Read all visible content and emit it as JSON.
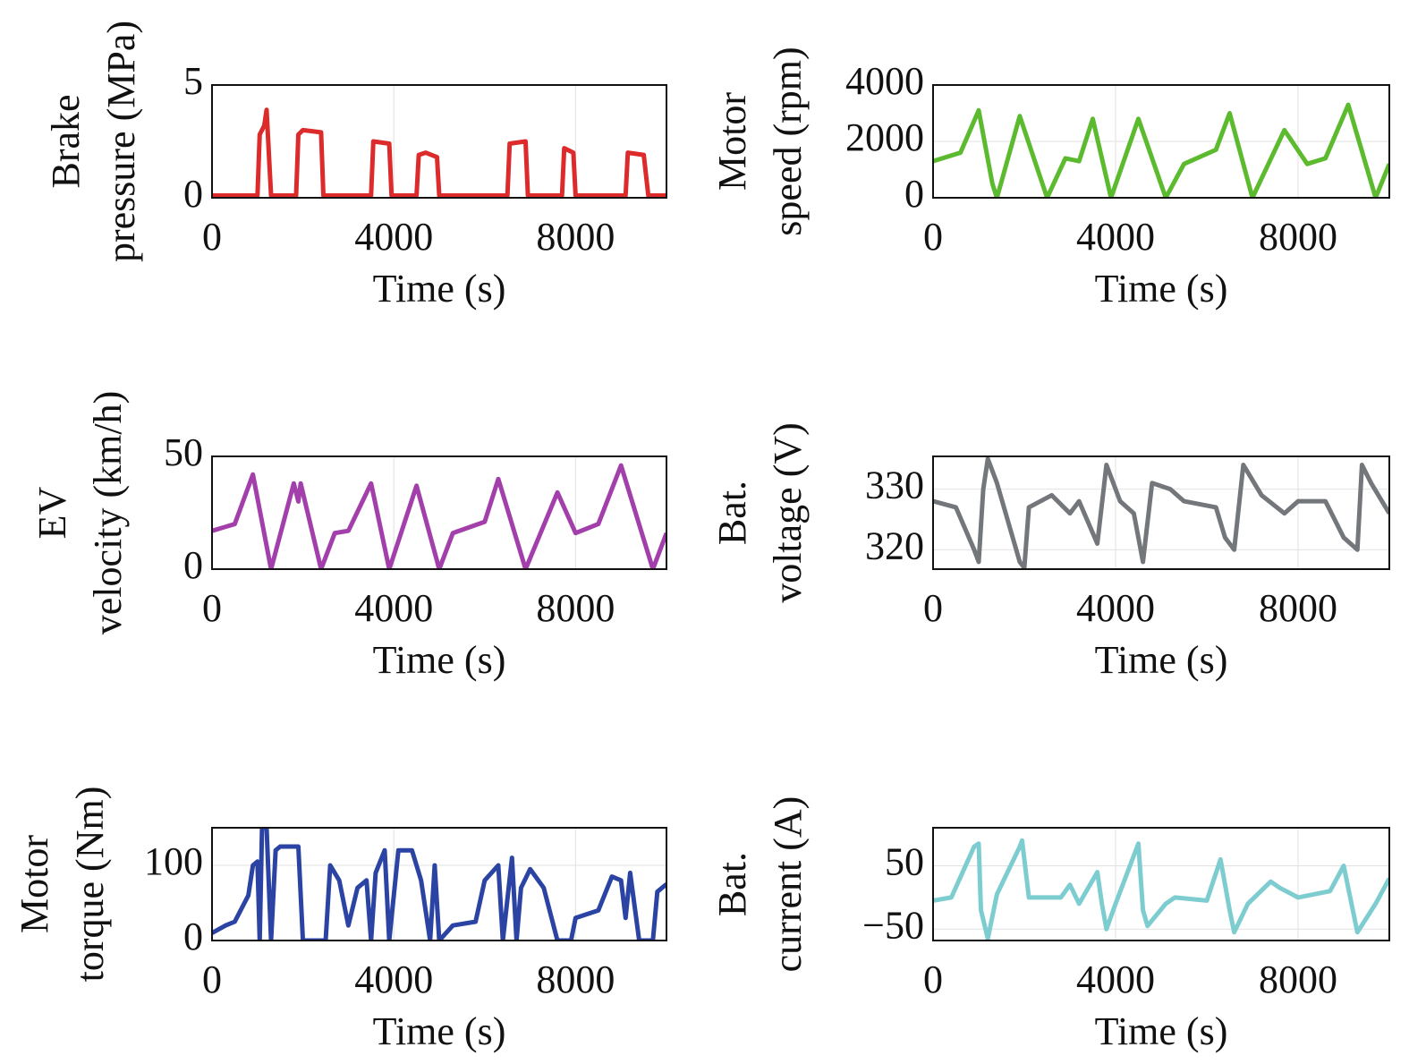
{
  "chart_data": [
    {
      "type": "line",
      "xlabel": "Time (s)",
      "ylabel": [
        "Brake",
        "pressure (MPa)"
      ],
      "xlim": [
        0,
        10000
      ],
      "xticks": [
        0,
        4000,
        8000
      ],
      "ylim": [
        0,
        5
      ],
      "yticks": [
        0,
        5
      ],
      "grid": true,
      "color": "#dd2a2a",
      "x": [
        0,
        1000,
        1050,
        1150,
        1200,
        1300,
        1850,
        1900,
        2000,
        2400,
        2450,
        3500,
        3550,
        3900,
        3950,
        4500,
        4550,
        4700,
        4950,
        5000,
        6500,
        6550,
        6900,
        6950,
        7700,
        7750,
        7950,
        8000,
        9100,
        9150,
        9500,
        9600,
        10000
      ],
      "values": [
        0.1,
        0.1,
        2.8,
        3.2,
        3.9,
        0.1,
        0.1,
        2.8,
        3.0,
        2.9,
        0.1,
        0.1,
        2.5,
        2.4,
        0.1,
        0.1,
        1.9,
        2.0,
        1.8,
        0.1,
        0.1,
        2.4,
        2.5,
        0.1,
        0.1,
        2.2,
        2.0,
        0.1,
        0.1,
        2.0,
        1.9,
        0.1,
        0.1
      ]
    },
    {
      "type": "line",
      "xlabel": "Time (s)",
      "ylabel": [
        "Motor",
        "speed (rpm)"
      ],
      "xlim": [
        0,
        10000
      ],
      "xticks": [
        0,
        4000,
        8000
      ],
      "ylim": [
        0,
        4000
      ],
      "yticks": [
        0,
        2000,
        4000
      ],
      "grid": true,
      "color": "#5cba2e",
      "x": [
        0,
        600,
        1000,
        1300,
        1400,
        1900,
        2500,
        2900,
        3200,
        3500,
        3900,
        4500,
        5100,
        5500,
        6200,
        6500,
        7000,
        7700,
        8200,
        8600,
        9100,
        9700,
        10000
      ],
      "values": [
        1300,
        1600,
        3100,
        500,
        0,
        2900,
        0,
        1400,
        1300,
        2800,
        0,
        2800,
        0,
        1200,
        1700,
        3000,
        0,
        2400,
        1200,
        1400,
        3300,
        0,
        1200
      ]
    },
    {
      "type": "line",
      "xlabel": "Time (s)",
      "ylabel": [
        "EV",
        "velocity (km/h)"
      ],
      "xlim": [
        0,
        10000
      ],
      "xticks": [
        0,
        4000,
        8000
      ],
      "ylim": [
        0,
        50
      ],
      "yticks": [
        0,
        50
      ],
      "grid": true,
      "color": "#a23fab",
      "x": [
        0,
        500,
        900,
        1300,
        1800,
        1900,
        1950,
        2400,
        2700,
        3000,
        3500,
        3900,
        4500,
        5000,
        5300,
        6000,
        6300,
        6900,
        7600,
        8000,
        8500,
        9000,
        9700,
        10000
      ],
      "values": [
        17,
        20,
        42,
        0,
        38,
        30,
        38,
        0,
        16,
        17,
        38,
        0,
        37,
        0,
        16,
        21,
        40,
        0,
        34,
        16,
        20,
        46,
        0,
        16
      ]
    },
    {
      "type": "line",
      "xlabel": "Time (s)",
      "ylabel": [
        "Bat.",
        "voltage (V)"
      ],
      "xlim": [
        0,
        10000
      ],
      "xticks": [
        0,
        4000,
        8000
      ],
      "ylim": [
        316.8,
        335.4
      ],
      "yticks": [
        320,
        330
      ],
      "grid": true,
      "color": "#73767a",
      "x": [
        0,
        500,
        900,
        1000,
        1100,
        1200,
        1400,
        1900,
        2000,
        2100,
        2600,
        3000,
        3200,
        3600,
        3800,
        4100,
        4400,
        4600,
        4800,
        5200,
        5500,
        6200,
        6400,
        6600,
        6800,
        7200,
        7700,
        8000,
        8600,
        9000,
        9300,
        9400,
        9600,
        10000
      ],
      "values": [
        328,
        327,
        320,
        318,
        330,
        335,
        331,
        318,
        317,
        327,
        329,
        326,
        328,
        321,
        334,
        328,
        326,
        318,
        331,
        330,
        328,
        327,
        322,
        320,
        334,
        329,
        326,
        328,
        328,
        322,
        320,
        334,
        331,
        326
      ]
    },
    {
      "type": "line",
      "xlabel": "Time (s)",
      "ylabel": [
        "Motor",
        "torque (Nm)"
      ],
      "xlim": [
        0,
        10000
      ],
      "xticks": [
        0,
        4000,
        8000
      ],
      "ylim": [
        0,
        150
      ],
      "yticks": [
        0,
        100
      ],
      "grid": true,
      "color": "#2b43a3",
      "x": [
        0,
        300,
        500,
        800,
        900,
        1000,
        1050,
        1100,
        1200,
        1300,
        1400,
        1500,
        1900,
        2000,
        2500,
        2600,
        2800,
        3000,
        3200,
        3400,
        3500,
        3600,
        3800,
        3900,
        4100,
        4400,
        4600,
        4800,
        4900,
        5000,
        5300,
        5800,
        6000,
        6300,
        6400,
        6600,
        6700,
        6800,
        7000,
        7300,
        7600,
        7900,
        8000,
        8500,
        8800,
        9000,
        9100,
        9200,
        9400,
        9700,
        9800,
        10000
      ],
      "values": [
        10,
        20,
        25,
        60,
        100,
        105,
        0,
        150,
        150,
        0,
        120,
        125,
        125,
        0,
        0,
        100,
        80,
        20,
        70,
        80,
        0,
        90,
        120,
        0,
        120,
        120,
        80,
        0,
        100,
        0,
        20,
        25,
        80,
        100,
        0,
        110,
        0,
        70,
        95,
        70,
        0,
        0,
        30,
        40,
        85,
        80,
        30,
        90,
        0,
        0,
        65,
        75
      ]
    },
    {
      "type": "line",
      "xlabel": "Time (s)",
      "ylabel": [
        "Bat.",
        "current (A)"
      ],
      "xlim": [
        0,
        10000
      ],
      "xticks": [
        0,
        4000,
        8000
      ],
      "ylim": [
        -68,
        110
      ],
      "yticks": [
        {
          "value": -50,
          "label": "−50"
        },
        50
      ],
      "grid": true,
      "color": "#7dcdd0",
      "x": [
        0,
        400,
        900,
        1000,
        1050,
        1200,
        1400,
        1900,
        1950,
        2100,
        2800,
        3000,
        3200,
        3400,
        3600,
        3700,
        3800,
        4000,
        4500,
        4600,
        4700,
        5100,
        5300,
        6000,
        6300,
        6500,
        6600,
        6900,
        7400,
        7600,
        8000,
        8700,
        9000,
        9200,
        9300,
        9700,
        10000
      ],
      "values": [
        -5,
        0,
        80,
        85,
        -20,
        -65,
        5,
        80,
        90,
        0,
        0,
        20,
        -10,
        15,
        40,
        -10,
        -50,
        -10,
        85,
        -20,
        -45,
        -10,
        0,
        -5,
        60,
        -20,
        -55,
        -10,
        25,
        15,
        0,
        10,
        50,
        -20,
        -55,
        -10,
        30
      ]
    }
  ]
}
